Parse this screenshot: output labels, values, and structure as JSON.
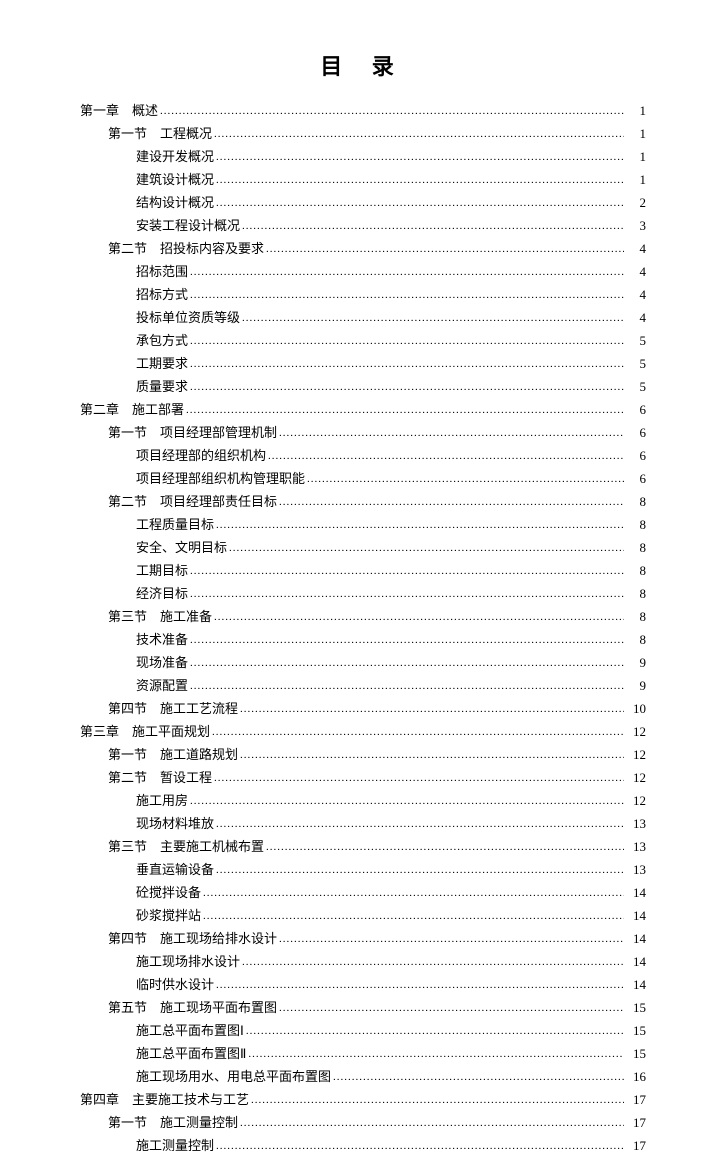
{
  "title": "目  录",
  "entries": [
    {
      "level": 0,
      "label": "第一章　概述",
      "page": "1"
    },
    {
      "level": 1,
      "label": "第一节　工程概况",
      "page": "1"
    },
    {
      "level": 2,
      "label": "建设开发概况",
      "page": "1"
    },
    {
      "level": 2,
      "label": "建筑设计概况",
      "page": "1"
    },
    {
      "level": 2,
      "label": "结构设计概况",
      "page": "2"
    },
    {
      "level": 2,
      "label": "安装工程设计概况",
      "page": "3"
    },
    {
      "level": 1,
      "label": "第二节　招投标内容及要求",
      "page": "4"
    },
    {
      "level": 2,
      "label": "招标范围",
      "page": "4"
    },
    {
      "level": 2,
      "label": "招标方式",
      "page": "4"
    },
    {
      "level": 2,
      "label": "投标单位资质等级",
      "page": "4"
    },
    {
      "level": 2,
      "label": "承包方式",
      "page": "5"
    },
    {
      "level": 2,
      "label": "工期要求",
      "page": "5"
    },
    {
      "level": 2,
      "label": "质量要求",
      "page": "5"
    },
    {
      "level": 0,
      "label": "第二章　施工部署",
      "page": "6"
    },
    {
      "level": 1,
      "label": "第一节　项目经理部管理机制",
      "page": "6"
    },
    {
      "level": 2,
      "label": "项目经理部的组织机构",
      "page": "6"
    },
    {
      "level": 2,
      "label": "项目经理部组织机构管理职能",
      "page": "6"
    },
    {
      "level": 1,
      "label": "第二节　项目经理部责任目标",
      "page": "8"
    },
    {
      "level": 2,
      "label": "工程质量目标",
      "page": "8"
    },
    {
      "level": 2,
      "label": "安全、文明目标",
      "page": "8"
    },
    {
      "level": 2,
      "label": "工期目标",
      "page": "8"
    },
    {
      "level": 2,
      "label": "经济目标",
      "page": "8"
    },
    {
      "level": 1,
      "label": "第三节　施工准备",
      "page": "8"
    },
    {
      "level": 2,
      "label": "技术准备",
      "page": "8"
    },
    {
      "level": 2,
      "label": "现场准备",
      "page": "9"
    },
    {
      "level": 2,
      "label": "资源配置",
      "page": "9"
    },
    {
      "level": 1,
      "label": "第四节　施工工艺流程",
      "page": "10"
    },
    {
      "level": 0,
      "label": "第三章　施工平面规划",
      "page": "12"
    },
    {
      "level": 1,
      "label": "第一节　施工道路规划",
      "page": "12"
    },
    {
      "level": 1,
      "label": "第二节　暂设工程",
      "page": "12"
    },
    {
      "level": 2,
      "label": "施工用房",
      "page": "12"
    },
    {
      "level": 2,
      "label": "现场材料堆放",
      "page": "13"
    },
    {
      "level": 1,
      "label": "第三节　主要施工机械布置",
      "page": "13"
    },
    {
      "level": 2,
      "label": "垂直运输设备",
      "page": "13"
    },
    {
      "level": 2,
      "label": "砼搅拌设备",
      "page": "14"
    },
    {
      "level": 2,
      "label": "砂浆搅拌站",
      "page": "14"
    },
    {
      "level": 1,
      "label": "第四节　施工现场给排水设计",
      "page": "14"
    },
    {
      "level": 2,
      "label": "施工现场排水设计",
      "page": "14"
    },
    {
      "level": 2,
      "label": "临时供水设计",
      "page": "14"
    },
    {
      "level": 1,
      "label": "第五节　施工现场平面布置图",
      "page": "15"
    },
    {
      "level": 2,
      "label": "施工总平面布置图Ⅰ",
      "page": "15"
    },
    {
      "level": 2,
      "label": "施工总平面布置图Ⅱ",
      "page": "15"
    },
    {
      "level": 2,
      "label": "施工现场用水、用电总平面布置图",
      "page": "16"
    },
    {
      "level": 0,
      "label": "第四章　主要施工技术与工艺",
      "page": "17"
    },
    {
      "level": 1,
      "label": "第一节　施工测量控制",
      "page": "17"
    },
    {
      "level": 2,
      "label": "施工测量控制",
      "page": "17"
    }
  ]
}
